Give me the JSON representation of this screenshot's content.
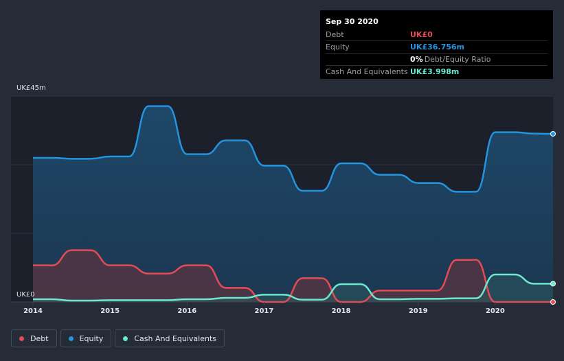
{
  "tooltip": {
    "date": "Sep 30 2020",
    "rows": [
      {
        "label": "Debt",
        "value": "UK£0",
        "color": "#e64a55"
      },
      {
        "label": "Equity",
        "value": "UK£36.756m",
        "color": "#2394df"
      },
      {
        "label": "",
        "value": "0%",
        "sub": "Debt/Equity Ratio",
        "color": "#ffffff"
      },
      {
        "label": "Cash And Equivalents",
        "value": "UK£3.998m",
        "color": "#6ce8d1"
      }
    ]
  },
  "legend": [
    {
      "label": "Debt",
      "color": "#e64a55"
    },
    {
      "label": "Equity",
      "color": "#2394df"
    },
    {
      "label": "Cash And Equivalents",
      "color": "#6ce8d1"
    }
  ],
  "chart_data": {
    "type": "area",
    "ylabel_top": "UK£45m",
    "ylabel_bottom": "UK£0",
    "ylim": [
      0,
      45
    ],
    "xlim": [
      2014,
      2020.75
    ],
    "xticks": [
      2014,
      2015,
      2016,
      2017,
      2018,
      2019,
      2020
    ],
    "series": [
      {
        "name": "Equity",
        "color": "#2394df",
        "points": [
          [
            2014,
            31.5
          ],
          [
            2014.25,
            31.5
          ],
          [
            2014.5,
            31.3
          ],
          [
            2014.75,
            31.3
          ],
          [
            2015,
            31.8
          ],
          [
            2015.25,
            31.8
          ],
          [
            2015.5,
            42.8
          ],
          [
            2015.75,
            42.8
          ],
          [
            2016,
            32.3
          ],
          [
            2016.25,
            32.3
          ],
          [
            2016.5,
            35.3
          ],
          [
            2016.75,
            35.3
          ],
          [
            2017,
            29.8
          ],
          [
            2017.25,
            29.8
          ],
          [
            2017.5,
            24.3
          ],
          [
            2017.75,
            24.3
          ],
          [
            2018,
            30.3
          ],
          [
            2018.25,
            30.3
          ],
          [
            2018.5,
            27.8
          ],
          [
            2018.75,
            27.8
          ],
          [
            2019,
            26.0
          ],
          [
            2019.25,
            26.0
          ],
          [
            2019.5,
            24.1
          ],
          [
            2019.75,
            24.1
          ],
          [
            2020,
            37.1
          ],
          [
            2020.25,
            37.1
          ],
          [
            2020.5,
            36.8
          ],
          [
            2020.75,
            36.756
          ]
        ]
      },
      {
        "name": "Debt",
        "color": "#e64a55",
        "points": [
          [
            2014,
            8.0
          ],
          [
            2014.25,
            8.0
          ],
          [
            2014.5,
            11.3
          ],
          [
            2014.75,
            11.3
          ],
          [
            2015,
            8.0
          ],
          [
            2015.25,
            8.0
          ],
          [
            2015.5,
            6.2
          ],
          [
            2015.75,
            6.2
          ],
          [
            2016,
            8.0
          ],
          [
            2016.25,
            8.0
          ],
          [
            2016.5,
            3.1
          ],
          [
            2016.75,
            3.1
          ],
          [
            2017,
            0
          ],
          [
            2017.25,
            0
          ],
          [
            2017.5,
            5.2
          ],
          [
            2017.75,
            5.2
          ],
          [
            2018,
            0
          ],
          [
            2018.25,
            0
          ],
          [
            2018.5,
            2.5
          ],
          [
            2018.75,
            2.5
          ],
          [
            2019,
            2.5
          ],
          [
            2019.25,
            2.5
          ],
          [
            2019.5,
            9.2
          ],
          [
            2019.75,
            9.2
          ],
          [
            2020,
            0
          ],
          [
            2020.25,
            0
          ],
          [
            2020.5,
            0
          ],
          [
            2020.75,
            0
          ]
        ]
      },
      {
        "name": "Cash And Equivalents",
        "color": "#6ce8d1",
        "points": [
          [
            2014,
            0.6
          ],
          [
            2014.25,
            0.6
          ],
          [
            2014.5,
            0.3
          ],
          [
            2014.75,
            0.3
          ],
          [
            2015,
            0.4
          ],
          [
            2015.25,
            0.4
          ],
          [
            2015.5,
            0.4
          ],
          [
            2015.75,
            0.4
          ],
          [
            2016,
            0.6
          ],
          [
            2016.25,
            0.6
          ],
          [
            2016.5,
            0.9
          ],
          [
            2016.75,
            0.9
          ],
          [
            2017,
            1.6
          ],
          [
            2017.25,
            1.6
          ],
          [
            2017.5,
            0.5
          ],
          [
            2017.75,
            0.5
          ],
          [
            2018,
            3.9
          ],
          [
            2018.25,
            3.9
          ],
          [
            2018.5,
            0.6
          ],
          [
            2018.75,
            0.6
          ],
          [
            2019,
            0.7
          ],
          [
            2019.25,
            0.7
          ],
          [
            2019.5,
            0.8
          ],
          [
            2019.75,
            0.8
          ],
          [
            2020,
            6.0
          ],
          [
            2020.25,
            6.0
          ],
          [
            2020.5,
            4.0
          ],
          [
            2020.75,
            3.998
          ]
        ]
      }
    ]
  }
}
